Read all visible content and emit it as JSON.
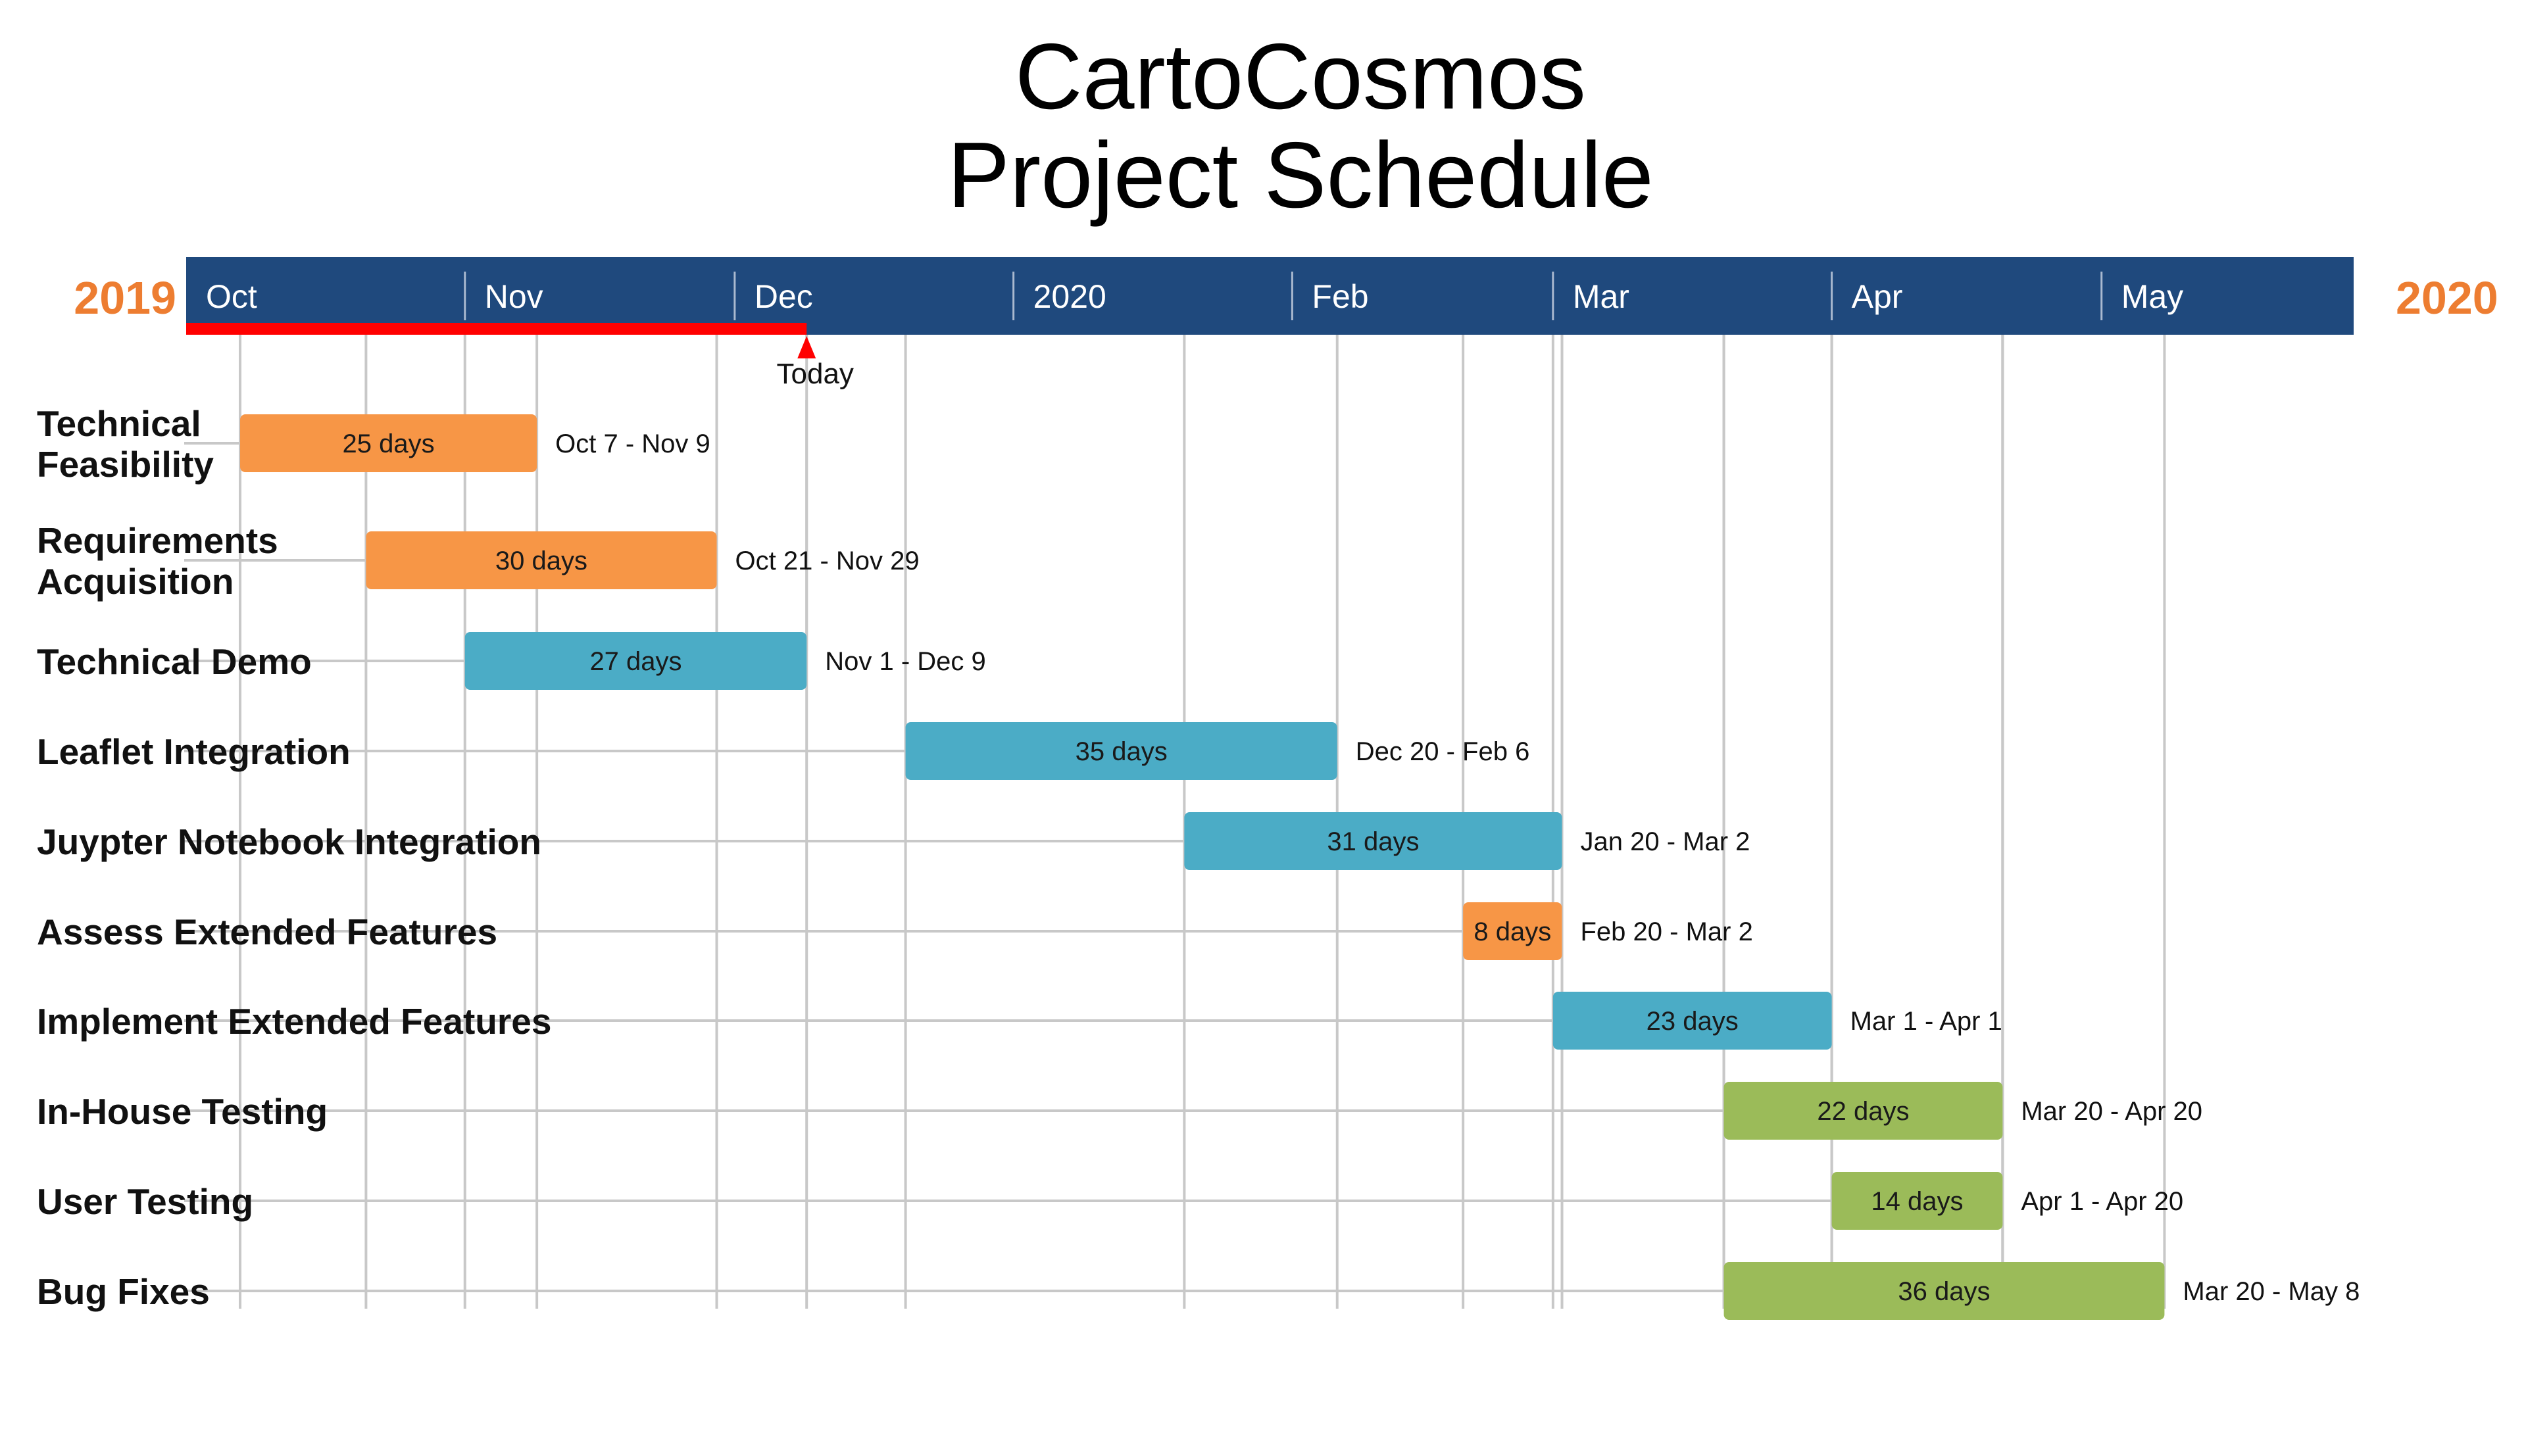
{
  "chart_data": {
    "type": "gantt",
    "title_lines": [
      "CartoCosmos",
      "Project Schedule"
    ],
    "year_start": "2019",
    "year_end": "2020",
    "months": [
      {
        "label": "Oct",
        "date": "2019-10-01"
      },
      {
        "label": "Nov",
        "date": "2019-11-01"
      },
      {
        "label": "Dec",
        "date": "2019-12-01"
      },
      {
        "label": "2020",
        "date": "2020-01-01"
      },
      {
        "label": "Feb",
        "date": "2020-02-01"
      },
      {
        "label": "Mar",
        "date": "2020-03-01"
      },
      {
        "label": "Apr",
        "date": "2020-04-01"
      },
      {
        "label": "May",
        "date": "2020-05-01"
      }
    ],
    "today": {
      "label": "Today",
      "date": "2019-12-09"
    },
    "tasks": [
      {
        "name_lines": [
          "Technical",
          "Feasibility"
        ],
        "start": "2019-10-07",
        "end": "2019-11-09",
        "duration": "25 days",
        "range": "Oct 7 - Nov 9",
        "color": "#f79646"
      },
      {
        "name_lines": [
          "Requirements",
          "Acquisition"
        ],
        "start": "2019-10-21",
        "end": "2019-11-29",
        "duration": "30 days",
        "range": "Oct 21 - Nov 29",
        "color": "#f79646"
      },
      {
        "name_lines": [
          "Technical Demo"
        ],
        "start": "2019-11-01",
        "end": "2019-12-09",
        "duration": "27 days",
        "range": "Nov 1 - Dec 9",
        "color": "#4bacc6"
      },
      {
        "name_lines": [
          "Leaflet Integration"
        ],
        "start": "2019-12-20",
        "end": "2020-02-06",
        "duration": "35 days",
        "range": "Dec 20 - Feb 6",
        "color": "#4bacc6"
      },
      {
        "name_lines": [
          "Juypter Notebook Integration"
        ],
        "start": "2020-01-20",
        "end": "2020-03-02",
        "duration": "31 days",
        "range": "Jan 20 - Mar 2",
        "color": "#4bacc6"
      },
      {
        "name_lines": [
          "Assess Extended Features"
        ],
        "start": "2020-02-20",
        "end": "2020-03-02",
        "duration": "8 days",
        "range": "Feb 20 - Mar 2",
        "color": "#f79646"
      },
      {
        "name_lines": [
          "Implement Extended Features"
        ],
        "start": "2020-03-01",
        "end": "2020-04-01",
        "duration": "23 days",
        "range": "Mar 1 - Apr 1",
        "color": "#4bacc6"
      },
      {
        "name_lines": [
          "In-House Testing"
        ],
        "start": "2020-03-20",
        "end": "2020-04-20",
        "duration": "22 days",
        "range": "Mar 20 - Apr 20",
        "color": "#9bbb59"
      },
      {
        "name_lines": [
          "User Testing"
        ],
        "start": "2020-04-01",
        "end": "2020-04-20",
        "duration": "14 days",
        "range": "Apr 1 - Apr 20",
        "color": "#9bbb59"
      },
      {
        "name_lines": [
          "Bug Fixes"
        ],
        "start": "2020-03-20",
        "end": "2020-05-08",
        "duration": "36 days",
        "range": "Mar 20 - May 8",
        "color": "#9bbb59"
      }
    ],
    "colors": {
      "timeline_band": "#1f497d",
      "year_text": "#ed7d31",
      "today_marker": "#ff0000",
      "connector": "#c8c8c8"
    }
  }
}
